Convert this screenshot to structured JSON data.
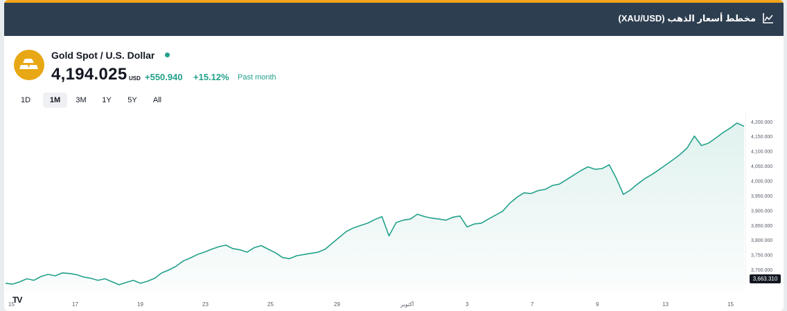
{
  "header": {
    "title": "مخطط أسعار الذهب (XAU/USD)",
    "icon": "line-chart-icon"
  },
  "symbol": {
    "name": "Gold Spot / U.S. Dollar",
    "price": "4,194.025",
    "currency": "USD",
    "change": "+550.940",
    "change_pct": "+15.12%",
    "period": "Past month",
    "logo_icon": "gold-bars-icon",
    "status": "live-dot"
  },
  "ranges": [
    {
      "label": "1D",
      "active": false
    },
    {
      "label": "1M",
      "active": true
    },
    {
      "label": "3M",
      "active": false
    },
    {
      "label": "1Y",
      "active": false
    },
    {
      "label": "5Y",
      "active": false
    },
    {
      "label": "All",
      "active": false
    }
  ],
  "colors": {
    "header_bg": "#2d3e50",
    "accent": "#f2a31b",
    "line": "#22a08a",
    "logo": "#e8a714"
  },
  "chart_data": {
    "type": "area",
    "y_ticks": [
      "3,700.000",
      "3,750.000",
      "3,800.000",
      "3,850.000",
      "3,900.000",
      "3,950.000",
      "4,000.000",
      "4,050.000",
      "4,100.000",
      "4,150.000",
      "4,200.000"
    ],
    "ylim": [
      3650,
      4210
    ],
    "x_tick_labels": [
      "15",
      "17",
      "19",
      "23",
      "25",
      "29",
      "أكتوبر",
      "3",
      "7",
      "9",
      "13",
      "15"
    ],
    "last_value_label": "3,663.310",
    "values": [
      3655,
      3652,
      3660,
      3670,
      3665,
      3678,
      3685,
      3680,
      3690,
      3688,
      3684,
      3676,
      3672,
      3665,
      3670,
      3660,
      3650,
      3658,
      3665,
      3655,
      3662,
      3672,
      3690,
      3700,
      3712,
      3730,
      3740,
      3752,
      3760,
      3770,
      3778,
      3784,
      3772,
      3768,
      3760,
      3775,
      3782,
      3770,
      3758,
      3742,
      3738,
      3748,
      3752,
      3756,
      3760,
      3770,
      3790,
      3810,
      3830,
      3842,
      3850,
      3858,
      3870,
      3880,
      3815,
      3860,
      3868,
      3872,
      3888,
      3880,
      3875,
      3872,
      3868,
      3878,
      3882,
      3845,
      3855,
      3858,
      3872,
      3885,
      3898,
      3925,
      3945,
      3960,
      3958,
      3968,
      3972,
      3985,
      3990,
      4005,
      4020,
      4035,
      4048,
      4040,
      4042,
      4055,
      4010,
      3955,
      3970,
      3990,
      4008,
      4022,
      4038,
      4055,
      4072,
      4090,
      4112,
      4152,
      4120,
      4128,
      4145,
      4163,
      4178,
      4196,
      4185
    ],
    "grid": "off",
    "legend": "none"
  }
}
